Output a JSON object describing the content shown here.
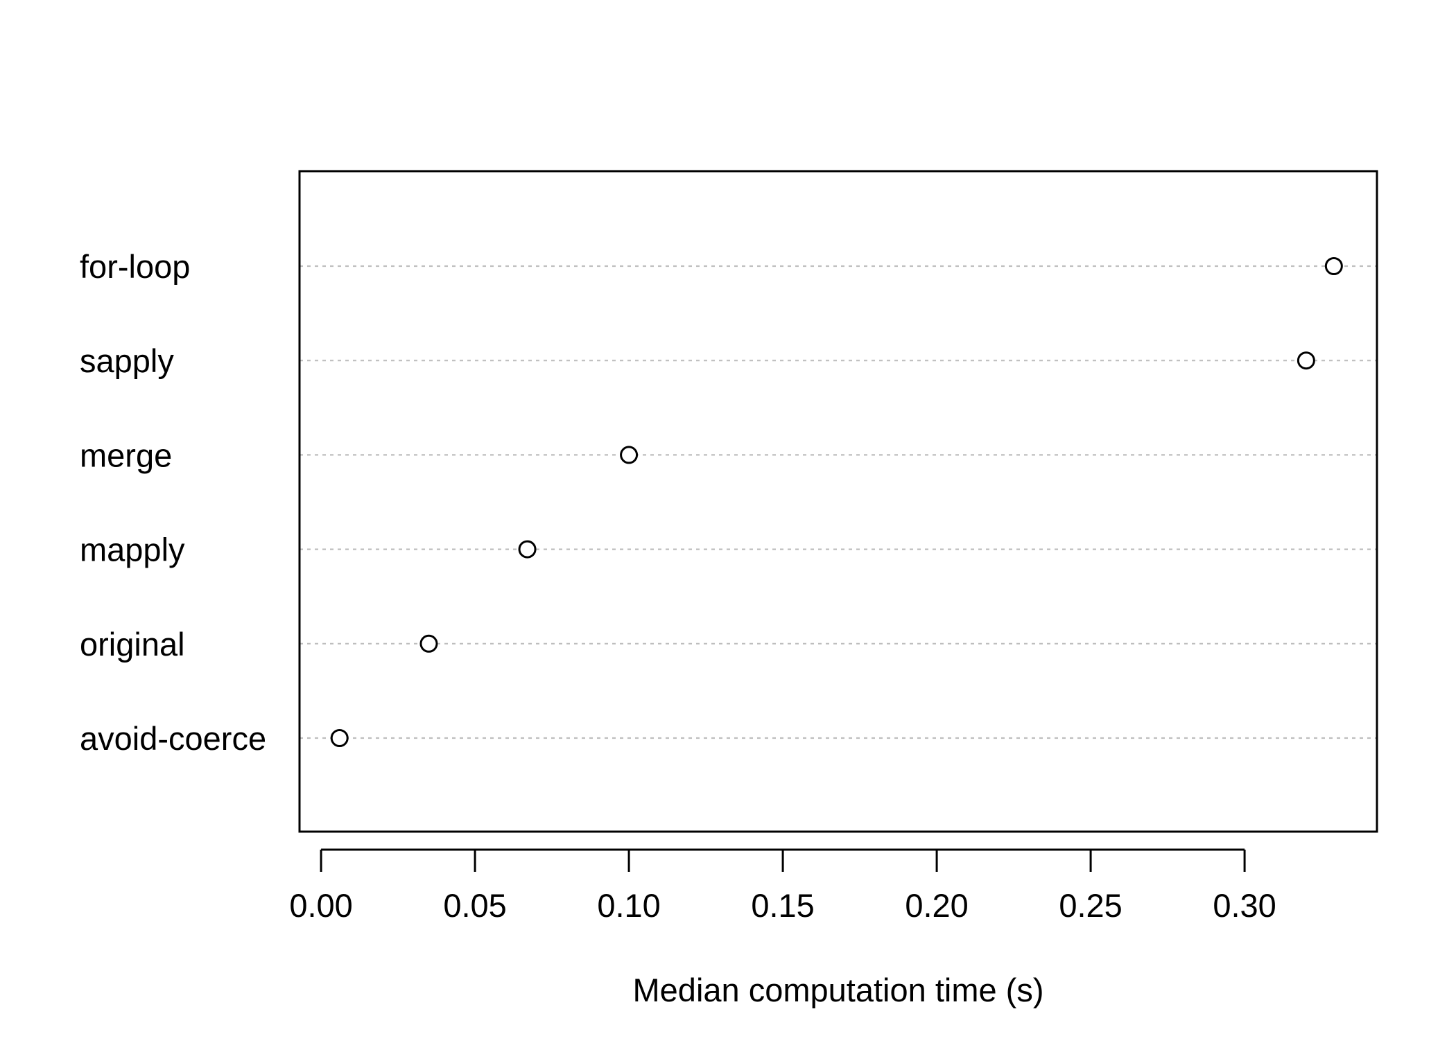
{
  "chart_data": {
    "type": "scatter",
    "subtype": "dotchart",
    "title": "",
    "xlabel": "Median computation time (s)",
    "ylabel": "",
    "categories": [
      "avoid-coerce",
      "original",
      "mapply",
      "merge",
      "sapply",
      "for-loop"
    ],
    "values": [
      0.006,
      0.035,
      0.067,
      0.1,
      0.32,
      0.329
    ],
    "xlim": [
      -0.007,
      0.343
    ],
    "xticks": [
      0.0,
      0.05,
      0.1,
      0.15,
      0.2,
      0.25,
      0.3
    ],
    "xtick_labels": [
      "0.00",
      "0.05",
      "0.10",
      "0.15",
      "0.20",
      "0.25",
      "0.30"
    ],
    "grid": "horizontal dashed guide per category",
    "legend": "none",
    "colors": {
      "marker_stroke": "#000000",
      "guide_line": "#bebebe",
      "frame": "#000000"
    }
  }
}
